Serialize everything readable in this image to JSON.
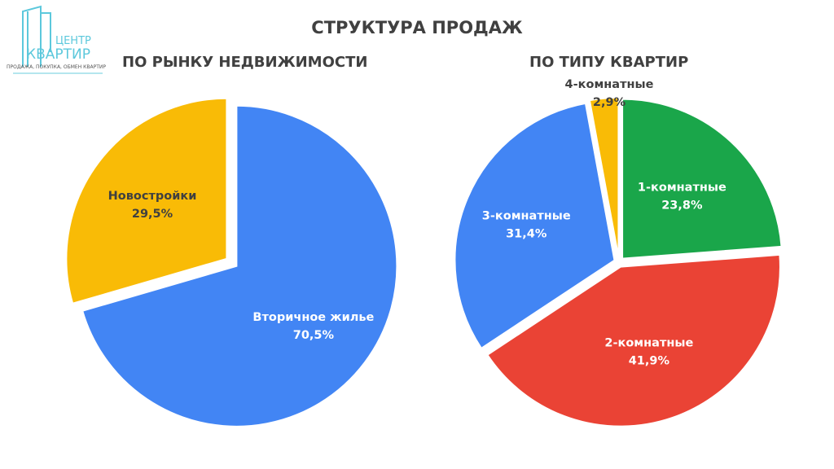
{
  "logo": {
    "line1": "ЦЕНТР",
    "line2": "КВАРТИР",
    "tagline": "ПРОДАЖА, ПОКУПКА, ОБМЕН КВАРТИР"
  },
  "title": "СТРУКТУРА ПРОДАЖ",
  "chart_data": [
    {
      "type": "pie",
      "title": "ПО РЫНКУ НЕДВИЖИМОСТИ",
      "categories": [
        "Вторичное жилье",
        "Новостройки"
      ],
      "values": [
        70.5,
        29.5
      ],
      "value_labels": [
        "70,5%",
        "29,5%"
      ],
      "colors": [
        "#4285F4",
        "#F9BB06"
      ],
      "label_colors": [
        "#ffffff",
        "#404040"
      ],
      "start": "12 o'clock, clockwise",
      "legend": "none, labels inside slices"
    },
    {
      "type": "pie",
      "title": "ПО ТИПУ КВАРТИР",
      "categories": [
        "1-комнатные",
        "2-комнатные",
        "3-комнатные",
        "4-комнатные"
      ],
      "values": [
        23.8,
        41.9,
        31.4,
        2.9
      ],
      "value_labels": [
        "23,8%",
        "41,9%",
        "31,4%",
        "2,9%"
      ],
      "colors": [
        "#1AA64A",
        "#EA4335",
        "#4285F4",
        "#F9BB06"
      ],
      "label_colors": [
        "#ffffff",
        "#ffffff",
        "#ffffff",
        "#404040"
      ],
      "start": "12 o'clock, clockwise",
      "legend": "none, labels inside slices"
    }
  ]
}
